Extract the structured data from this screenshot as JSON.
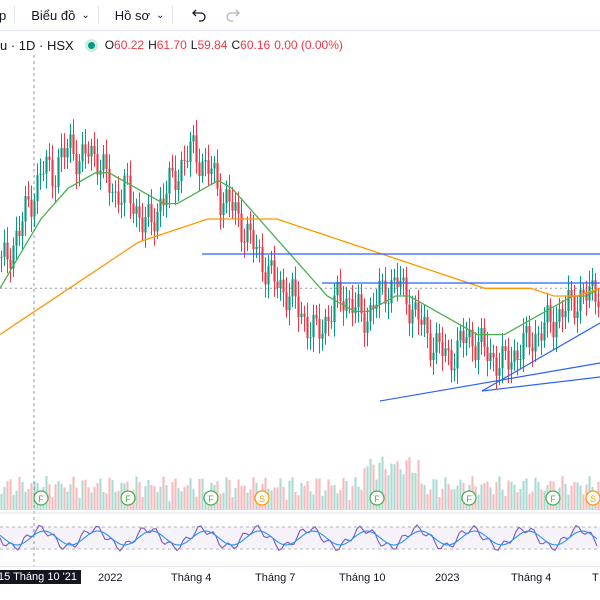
{
  "toolbar": {
    "partial_item": "p",
    "chart_type_label": "Biểu đồ",
    "profile_label": "Hồ sơ",
    "undo_icon": "undo-icon",
    "redo_icon": "redo-icon"
  },
  "legend": {
    "symbol_fragment": "u · 1D · HSX",
    "open_label": "O",
    "open": "60.22",
    "high_label": "H",
    "high": "61.70",
    "low_label": "L",
    "low": "59.84",
    "close_label": "C",
    "close": "60.16",
    "change": "0.00 (0.00%)"
  },
  "xaxis": {
    "cursor_date": "15 Tháng 10 '21",
    "labels": [
      "2022",
      "Tháng 4",
      "Tháng 7",
      "Tháng 10",
      "2023",
      "Tháng 4",
      "T"
    ]
  },
  "markers": [
    {
      "type": "F"
    },
    {
      "type": "F"
    },
    {
      "type": "F"
    },
    {
      "type": "S"
    },
    {
      "type": "F"
    },
    {
      "type": "F"
    },
    {
      "type": "F"
    },
    {
      "type": "S"
    }
  ],
  "colors": {
    "up": "#089981",
    "down": "#f23645",
    "ma_short": "#4caf50",
    "ma_long": "#ff9800",
    "trendline": "#2962ff",
    "rsi": "#7e57c2",
    "rsi_signal": "#2196f3",
    "marker_f": "#4caf50",
    "marker_s": "#ff9800"
  },
  "chart_data": {
    "type": "candlestick",
    "price_path": [
      64,
      66,
      68,
      72,
      74,
      77,
      76,
      78,
      80,
      77,
      79,
      78,
      75,
      73,
      74,
      72,
      70,
      69,
      72,
      74,
      76,
      78,
      79,
      77,
      76,
      73,
      72,
      70,
      68,
      66,
      64,
      62,
      61,
      60,
      58,
      56,
      55,
      57,
      59,
      60,
      59,
      57,
      58,
      60,
      61,
      62,
      60,
      58,
      56,
      54,
      53,
      52,
      53,
      55,
      54,
      53,
      52,
      51,
      52,
      53,
      54,
      55,
      56,
      57,
      58,
      59,
      60,
      60,
      61
    ],
    "ma_short": [
      61,
      64,
      67,
      70,
      72,
      74,
      75,
      76,
      76,
      75,
      74,
      73,
      72,
      72,
      73,
      74,
      75,
      74,
      72,
      70,
      68,
      66,
      64,
      62,
      60,
      59,
      58,
      58,
      59,
      60,
      60,
      59,
      58,
      57,
      56,
      55,
      55,
      55,
      56,
      57,
      58,
      59,
      60,
      60,
      61
    ],
    "ma_long": [
      55,
      57,
      59,
      61,
      63,
      65,
      67,
      68,
      69,
      70,
      70,
      70,
      70,
      69,
      68,
      67,
      66,
      65,
      64,
      63,
      62,
      61,
      61,
      61,
      60,
      60,
      61
    ],
    "markers_order": [
      "F",
      "F",
      "F",
      "S",
      "F",
      "F",
      "F",
      "S"
    ]
  }
}
